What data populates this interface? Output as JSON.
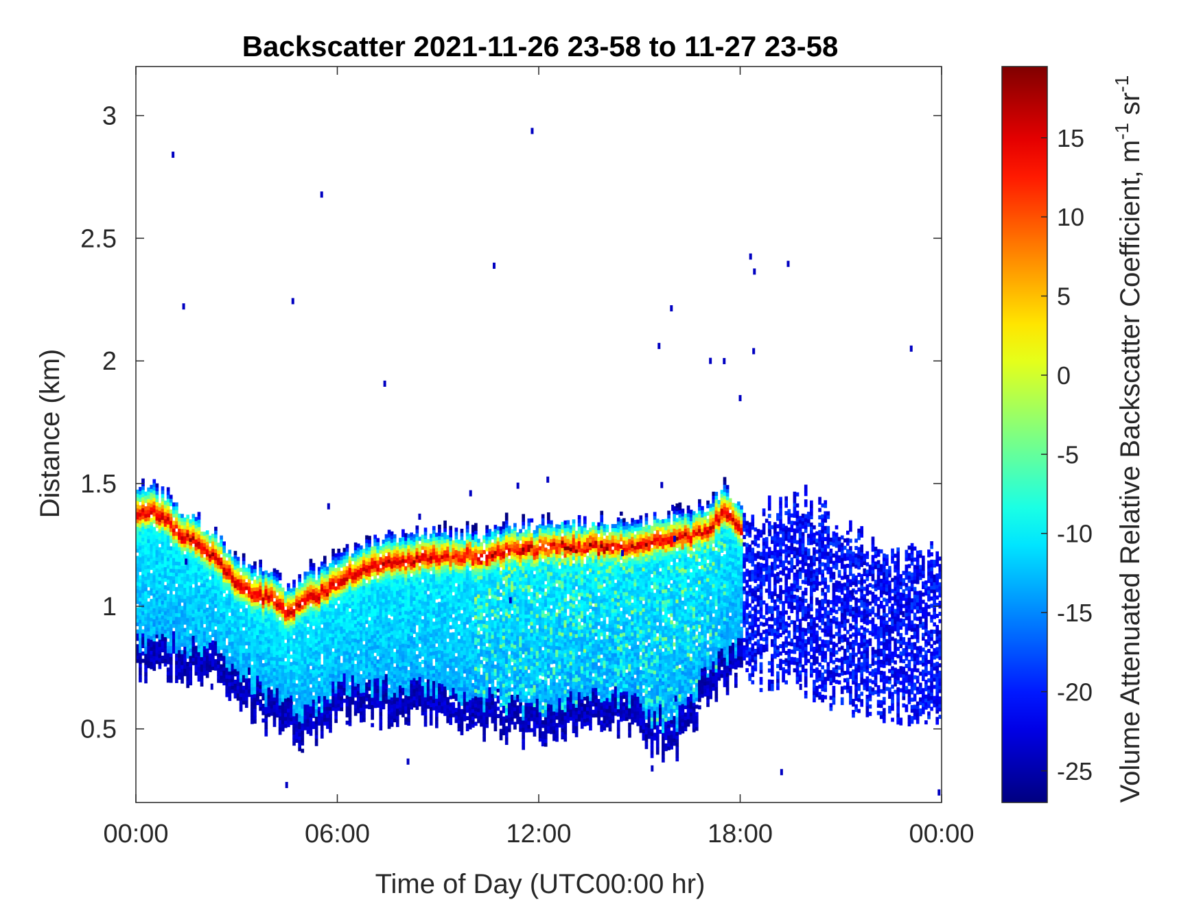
{
  "chart_data": {
    "type": "heatmap",
    "title": "Backscatter 2021-11-26 23-58 to 11-27 23-58",
    "xlabel": "Time of Day (UTC00:00 hr)",
    "ylabel": "Distance (km)",
    "xlim_hours": [
      0,
      24
    ],
    "ylim": [
      0.2,
      3.2
    ],
    "x_ticks": [
      {
        "hour": 0,
        "label": "00:00"
      },
      {
        "hour": 6,
        "label": "06:00"
      },
      {
        "hour": 12,
        "label": "12:00"
      },
      {
        "hour": 18,
        "label": "18:00"
      },
      {
        "hour": 24,
        "label": "00:00"
      }
    ],
    "y_ticks": [
      {
        "value": 0.5,
        "label": "0.5"
      },
      {
        "value": 1,
        "label": "1"
      },
      {
        "value": 1.5,
        "label": "1.5"
      },
      {
        "value": 2,
        "label": "2"
      },
      {
        "value": 2.5,
        "label": "2.5"
      },
      {
        "value": 3,
        "label": "3"
      }
    ],
    "colorbar": {
      "label": "Volume Attenuated Relative Backscatter Coefficient, m",
      "label_sup1": "-1",
      "label_mid": " sr",
      "label_sup2": "-1",
      "colormap": "jet",
      "clim": [
        -27,
        19.5
      ],
      "ticks": [
        {
          "value": -25,
          "label": "-25"
        },
        {
          "value": -20,
          "label": "-20"
        },
        {
          "value": -15,
          "label": "-15"
        },
        {
          "value": -10,
          "label": "-10"
        },
        {
          "value": -5,
          "label": "-5"
        },
        {
          "value": 0,
          "label": "0"
        },
        {
          "value": 5,
          "label": "5"
        },
        {
          "value": 10,
          "label": "10"
        },
        {
          "value": 15,
          "label": "15"
        }
      ]
    },
    "grid": false,
    "cloud_layer": {
      "description": "strong backscatter band (cloud base) with weaker echoes below",
      "peak_value_approx": 17,
      "band_center_km": [
        [
          0.0,
          1.38
        ],
        [
          0.5,
          1.38
        ],
        [
          1.0,
          1.33
        ],
        [
          1.5,
          1.27
        ],
        [
          2.0,
          1.23
        ],
        [
          2.5,
          1.17
        ],
        [
          3.0,
          1.08
        ],
        [
          3.5,
          1.04
        ],
        [
          4.0,
          1.03
        ],
        [
          4.5,
          0.97
        ],
        [
          5.0,
          1.02
        ],
        [
          5.5,
          1.05
        ],
        [
          6.0,
          1.1
        ],
        [
          6.5,
          1.13
        ],
        [
          7.0,
          1.16
        ],
        [
          7.5,
          1.17
        ],
        [
          8.0,
          1.18
        ],
        [
          8.5,
          1.19
        ],
        [
          9.0,
          1.19
        ],
        [
          9.5,
          1.2
        ],
        [
          10.0,
          1.2
        ],
        [
          10.5,
          1.21
        ],
        [
          11.0,
          1.22
        ],
        [
          11.5,
          1.22
        ],
        [
          12.0,
          1.23
        ],
        [
          12.5,
          1.24
        ],
        [
          13.0,
          1.24
        ],
        [
          13.5,
          1.24
        ],
        [
          14.0,
          1.24
        ],
        [
          14.5,
          1.24
        ],
        [
          15.0,
          1.25
        ],
        [
          15.5,
          1.26
        ],
        [
          16.0,
          1.27
        ],
        [
          16.5,
          1.28
        ],
        [
          17.0,
          1.31
        ],
        [
          17.5,
          1.38
        ],
        [
          18.0,
          1.3
        ]
      ],
      "weak_echo_region": {
        "top_km": [
          [
            18.0,
            1.36
          ],
          [
            19.0,
            1.38
          ],
          [
            20.0,
            1.42
          ],
          [
            21.0,
            1.3
          ],
          [
            22.0,
            1.22
          ],
          [
            23.0,
            1.2
          ],
          [
            23.9,
            1.2
          ]
        ],
        "bottom_km": [
          [
            0.0,
            0.75
          ],
          [
            2.0,
            0.72
          ],
          [
            4.0,
            0.5
          ],
          [
            5.0,
            0.45
          ],
          [
            6.0,
            0.55
          ],
          [
            8.0,
            0.55
          ],
          [
            10.0,
            0.52
          ],
          [
            12.0,
            0.45
          ],
          [
            14.0,
            0.52
          ],
          [
            16.0,
            0.4
          ],
          [
            17.0,
            0.62
          ],
          [
            18.0,
            0.75
          ],
          [
            20.0,
            0.68
          ],
          [
            22.0,
            0.58
          ],
          [
            23.9,
            0.55
          ]
        ]
      }
    }
  }
}
